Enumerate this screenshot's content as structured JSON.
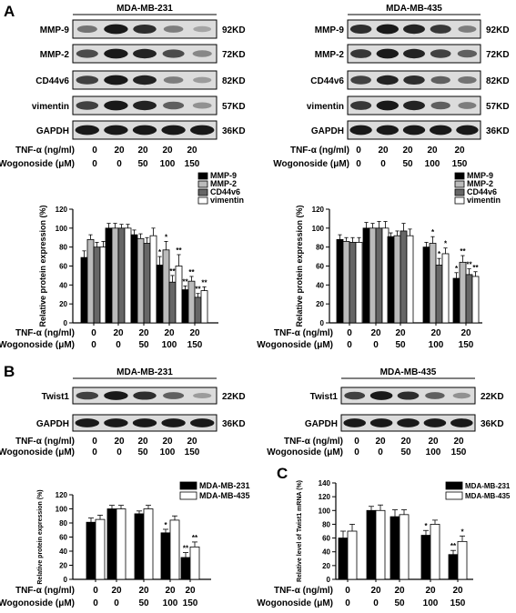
{
  "panel_labels": {
    "A": "A",
    "B": "B",
    "C": "C"
  },
  "conditions": {
    "row1_label": "TNF-α (ng/ml)",
    "row2_label": "Wogonoside (μM)",
    "tnf": [
      "0",
      "20",
      "20",
      "20",
      "20"
    ],
    "wogonoside": [
      "0",
      "0",
      "50",
      "100",
      "150"
    ]
  },
  "panelA": {
    "blots": [
      {
        "cell_line": "MDA-MB-231",
        "bands": [
          {
            "label": "MMP-9",
            "size": "92KD",
            "intensity": [
              0.5,
              0.95,
              0.85,
              0.45,
              0.25
            ]
          },
          {
            "label": "MMP-2",
            "size": "72KD",
            "intensity": [
              0.7,
              0.95,
              0.9,
              0.7,
              0.4
            ]
          },
          {
            "label": "CD44v6",
            "size": "82KD",
            "intensity": [
              0.75,
              0.95,
              0.9,
              0.45,
              0.3
            ]
          },
          {
            "label": "vimentin",
            "size": "57KD",
            "intensity": [
              0.75,
              0.95,
              0.9,
              0.6,
              0.35
            ]
          },
          {
            "label": "GAPDH",
            "size": "36KD",
            "intensity": [
              0.95,
              0.95,
              0.95,
              0.95,
              0.95
            ]
          }
        ]
      },
      {
        "cell_line": "MDA-MB-435",
        "bands": [
          {
            "label": "MMP-9",
            "size": "92KD",
            "intensity": [
              0.85,
              0.95,
              0.9,
              0.8,
              0.45
            ]
          },
          {
            "label": "MMP-2",
            "size": "72KD",
            "intensity": [
              0.8,
              0.95,
              0.9,
              0.75,
              0.6
            ]
          },
          {
            "label": "CD44v6",
            "size": "82KD",
            "intensity": [
              0.75,
              0.9,
              0.85,
              0.6,
              0.5
            ]
          },
          {
            "label": "vimentin",
            "size": "57KD",
            "intensity": [
              0.8,
              0.95,
              0.9,
              0.6,
              0.45
            ]
          },
          {
            "label": "GAPDH",
            "size": "36KD",
            "intensity": [
              0.95,
              0.95,
              0.95,
              0.95,
              0.95
            ]
          }
        ]
      }
    ]
  },
  "panelB": {
    "blots": [
      {
        "cell_line": "MDA-MB-231",
        "bands": [
          {
            "label": "Twist1",
            "size": "22KD",
            "intensity": [
              0.75,
              0.95,
              0.85,
              0.6,
              0.3
            ]
          },
          {
            "label": "GAPDH",
            "size": "36KD",
            "intensity": [
              0.95,
              0.95,
              0.95,
              0.95,
              0.95
            ]
          }
        ]
      },
      {
        "cell_line": "MDA-MB-435",
        "bands": [
          {
            "label": "Twist1",
            "size": "22KD",
            "intensity": [
              0.75,
              0.95,
              0.85,
              0.6,
              0.35
            ]
          },
          {
            "label": "GAPDH",
            "size": "36KD",
            "intensity": [
              0.95,
              0.95,
              0.95,
              0.95,
              0.95
            ]
          }
        ]
      }
    ]
  },
  "chart_data": [
    {
      "type": "bar",
      "ylabel": "Relative protein expression (%)",
      "ylim": [
        0,
        120
      ],
      "yticks": [
        0,
        20,
        40,
        60,
        80,
        100,
        120
      ],
      "legend_position": "top-right",
      "series": [
        {
          "name": "MMP-9",
          "fill": "#000000",
          "values": [
            69,
            100,
            93,
            61,
            35
          ],
          "errors": [
            7,
            5,
            5,
            9,
            4
          ],
          "marks": [
            "",
            "",
            "",
            "*",
            "**"
          ]
        },
        {
          "name": "MMP-2",
          "fill": "#bbbbbb",
          "values": [
            88,
            100,
            89,
            77,
            44
          ],
          "errors": [
            5,
            5,
            5,
            9,
            5
          ],
          "marks": [
            "",
            "",
            "",
            "*",
            "**"
          ]
        },
        {
          "name": "CD44v6",
          "fill": "#666666",
          "values": [
            80,
            100,
            84,
            43,
            27
          ],
          "errors": [
            5,
            4,
            6,
            7,
            4
          ],
          "marks": [
            "",
            "",
            "",
            "**",
            "**"
          ]
        },
        {
          "name": "vimentin",
          "fill": "#ffffff",
          "values": [
            80,
            100,
            92,
            60,
            34
          ],
          "errors": [
            6,
            4,
            8,
            12,
            4
          ],
          "marks": [
            "",
            "",
            "",
            "**",
            "**"
          ]
        }
      ]
    },
    {
      "type": "bar",
      "ylabel": "Relative protein expression (%)",
      "ylim": [
        0,
        120
      ],
      "yticks": [
        0,
        20,
        40,
        60,
        80,
        100,
        120
      ],
      "legend_position": "top-right",
      "series": [
        {
          "name": "MMP-9",
          "fill": "#000000",
          "values": [
            88,
            100,
            91,
            80,
            47
          ],
          "errors": [
            5,
            6,
            4,
            5,
            6
          ],
          "marks": [
            "",
            "",
            "",
            "",
            "*"
          ]
        },
        {
          "name": "MMP-2",
          "fill": "#bbbbbb",
          "values": [
            86,
            100,
            92,
            84,
            64
          ],
          "errors": [
            4,
            5,
            5,
            7,
            7
          ],
          "marks": [
            "",
            "",
            "",
            "*",
            "**"
          ]
        },
        {
          "name": "CD44v6",
          "fill": "#666666",
          "values": [
            85,
            100,
            97,
            61,
            51
          ],
          "errors": [
            5,
            7,
            8,
            7,
            6
          ],
          "marks": [
            "",
            "",
            "",
            "*",
            "**"
          ]
        },
        {
          "name": "vimentin",
          "fill": "#ffffff",
          "values": [
            85,
            100,
            92,
            73,
            49
          ],
          "errors": [
            5,
            7,
            7,
            6,
            5
          ],
          "marks": [
            "",
            "",
            "",
            "*",
            "**"
          ]
        }
      ]
    },
    {
      "type": "bar",
      "ylabel": "Relative protein expression (%)",
      "ylim": [
        0,
        120
      ],
      "yticks": [
        0,
        20,
        40,
        60,
        80,
        100,
        120
      ],
      "legend_position": "top-right",
      "series": [
        {
          "name": "MDA-MB-231",
          "fill": "#000000",
          "values": [
            81,
            100,
            93,
            66,
            31
          ],
          "errors": [
            6,
            5,
            4,
            5,
            7
          ],
          "marks": [
            "",
            "",
            "",
            "*",
            "**"
          ]
        },
        {
          "name": "MDA-MB-435",
          "fill": "#ffffff",
          "values": [
            85,
            100,
            100,
            84,
            46
          ],
          "errors": [
            6,
            5,
            5,
            6,
            7
          ],
          "marks": [
            "",
            "",
            "",
            "",
            "**"
          ]
        }
      ]
    },
    {
      "type": "bar",
      "ylabel": "Relative level of Twist1 mRNA (%)",
      "ylim": [
        0,
        140
      ],
      "yticks": [
        0,
        20,
        40,
        60,
        80,
        100,
        120,
        140
      ],
      "legend_position": "top-right",
      "series": [
        {
          "name": "MDA-MB-231",
          "fill": "#000000",
          "values": [
            60,
            100,
            91,
            64,
            36
          ],
          "errors": [
            10,
            6,
            10,
            7,
            6
          ],
          "marks": [
            "",
            "",
            "",
            "*",
            "**"
          ]
        },
        {
          "name": "MDA-MB-435",
          "fill": "#ffffff",
          "values": [
            70,
            100,
            94,
            80,
            55
          ],
          "errors": [
            10,
            8,
            7,
            6,
            8
          ],
          "marks": [
            "",
            "",
            "",
            "",
            "*"
          ]
        }
      ]
    }
  ]
}
